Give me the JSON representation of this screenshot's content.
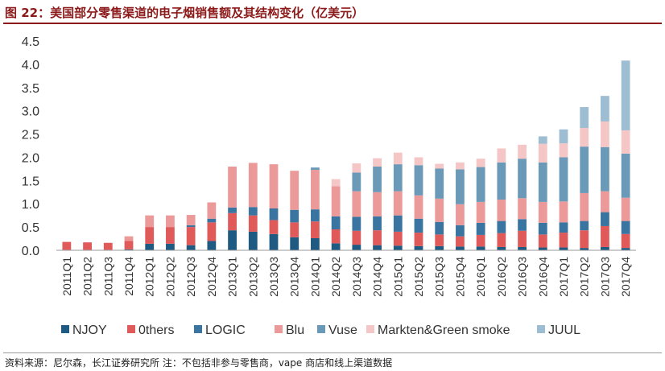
{
  "header": {
    "title": "图 22：美国部分零售渠道的电子烟销售额及其结构变化（亿美元）"
  },
  "footer": {
    "source": "资料来源：尼尔森，长江证券研究所  注：不包括非参与零售商，vape 商店和线上渠道数据"
  },
  "chart_data": {
    "type": "bar",
    "stacked": true,
    "title": "",
    "xlabel": "",
    "ylabel": "",
    "ylim": [
      0,
      4.5
    ],
    "yticks": [
      "0.0",
      "0.5",
      "1.0",
      "1.5",
      "2.0",
      "2.5",
      "3.0",
      "3.5",
      "4.0",
      "4.5"
    ],
    "grid": false,
    "legend_position": "bottom",
    "categories": [
      "2011Q1",
      "2011Q2",
      "2011Q3",
      "2011Q4",
      "2012Q1",
      "2012Q2",
      "2012Q3",
      "2012Q4",
      "2013Q1",
      "2013Q2",
      "2013Q3",
      "2013Q4",
      "2014Q1",
      "2014Q2",
      "2014Q3",
      "2014Q4",
      "2015Q1",
      "2015Q2",
      "2015Q3",
      "2015Q4",
      "2016Q1",
      "2016Q2",
      "2016Q3",
      "2016Q4",
      "2017Q1",
      "2017Q2",
      "2017Q3",
      "2017Q4"
    ],
    "series": [
      {
        "name": "NJOY",
        "color": "#1f5a82",
        "values": [
          0.01,
          0.01,
          0.01,
          0.02,
          0.14,
          0.14,
          0.11,
          0.2,
          0.43,
          0.4,
          0.35,
          0.28,
          0.26,
          0.15,
          0.12,
          0.11,
          0.1,
          0.09,
          0.09,
          0.08,
          0.08,
          0.07,
          0.07,
          0.06,
          0.06,
          0.05,
          0.07,
          0.05
        ]
      },
      {
        "name": "0thers",
        "color": "#e05a5a",
        "values": [
          0.17,
          0.16,
          0.15,
          0.18,
          0.36,
          0.36,
          0.39,
          0.4,
          0.37,
          0.35,
          0.3,
          0.32,
          0.36,
          0.3,
          0.3,
          0.32,
          0.3,
          0.29,
          0.25,
          0.22,
          0.25,
          0.3,
          0.35,
          0.28,
          0.32,
          0.38,
          0.45,
          0.3
        ]
      },
      {
        "name": "LOGIC",
        "color": "#3a74a0",
        "values": [
          0.0,
          0.0,
          0.0,
          0.0,
          0.0,
          0.0,
          0.04,
          0.08,
          0.12,
          0.18,
          0.25,
          0.27,
          0.26,
          0.28,
          0.3,
          0.3,
          0.35,
          0.3,
          0.27,
          0.24,
          0.26,
          0.26,
          0.25,
          0.25,
          0.22,
          0.2,
          0.3,
          0.28
        ]
      },
      {
        "name": "Blu",
        "color": "#eb9999",
        "values": [
          0.0,
          0.0,
          0.0,
          0.1,
          0.25,
          0.25,
          0.22,
          0.35,
          0.88,
          0.95,
          0.95,
          0.84,
          0.85,
          0.65,
          0.55,
          0.52,
          0.52,
          0.5,
          0.5,
          0.45,
          0.45,
          0.46,
          0.45,
          0.45,
          0.45,
          0.6,
          0.45,
          0.5
        ]
      },
      {
        "name": "Vuse",
        "color": "#6b9ab8",
        "values": [
          0.0,
          0.0,
          0.0,
          0.0,
          0.0,
          0.0,
          0.0,
          0.0,
          0.0,
          0.0,
          0.0,
          0.0,
          0.05,
          0.0,
          0.4,
          0.55,
          0.58,
          0.65,
          0.65,
          0.75,
          0.75,
          0.8,
          0.85,
          0.85,
          0.95,
          1.0,
          0.95,
          0.95
        ]
      },
      {
        "name": "Markten&Green smoke",
        "color": "#f5c6c6",
        "values": [
          0.0,
          0.0,
          0.0,
          0.0,
          0.0,
          0.0,
          0.0,
          0.0,
          0.0,
          0.0,
          0.0,
          0.0,
          0.0,
          0.15,
          0.2,
          0.18,
          0.25,
          0.17,
          0.1,
          0.15,
          0.18,
          0.3,
          0.3,
          0.4,
          0.3,
          0.4,
          0.55,
          0.5
        ]
      },
      {
        "name": "JUUL",
        "color": "#9dbdd2",
        "values": [
          0.0,
          0.0,
          0.0,
          0.0,
          0.0,
          0.0,
          0.0,
          0.0,
          0.0,
          0.0,
          0.0,
          0.0,
          0.0,
          0.0,
          0.0,
          0.0,
          0.0,
          0.0,
          0.0,
          0.0,
          0.0,
          0.0,
          0.0,
          0.16,
          0.3,
          0.45,
          0.55,
          1.5
        ]
      }
    ]
  }
}
